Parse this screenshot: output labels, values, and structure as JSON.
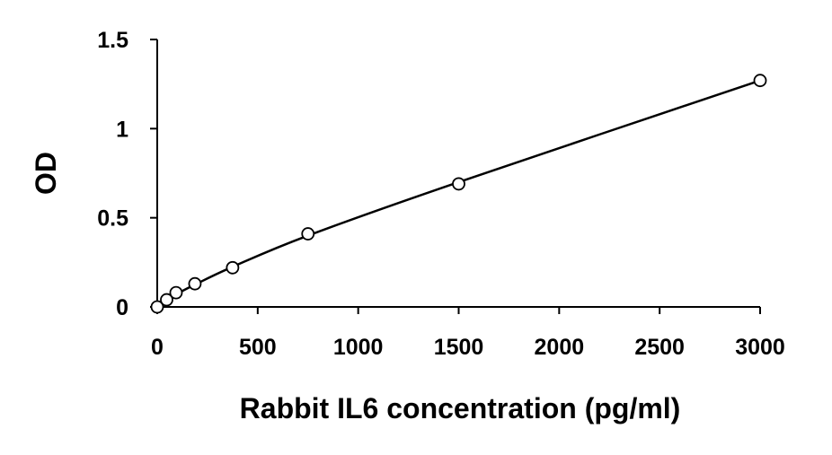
{
  "chart_data": {
    "type": "scatter",
    "title": "",
    "xlabel": "Rabbit IL6 concentration (pg/ml)",
    "ylabel": "OD",
    "xlim": [
      0,
      3000
    ],
    "ylim": [
      0,
      1.5
    ],
    "x_ticks": [
      0,
      500,
      1000,
      1500,
      2000,
      2500,
      3000
    ],
    "y_ticks": [
      0,
      0.5,
      1,
      1.5
    ],
    "x_tick_labels": [
      "0",
      "500",
      "1000",
      "1500",
      "2000",
      "2500",
      "3000"
    ],
    "y_tick_labels": [
      "0",
      "0.5",
      "1",
      "1.5"
    ],
    "grid": false,
    "legend": "none",
    "series": [
      {
        "type": "scatter",
        "marker": "open-circle",
        "x": [
          0,
          46.9,
          93.75,
          187.5,
          375,
          750,
          1500,
          3000
        ],
        "y": [
          0.0,
          0.04,
          0.08,
          0.13,
          0.22,
          0.41,
          0.69,
          1.27
        ]
      },
      {
        "type": "line",
        "smooth": true,
        "x": [
          0,
          46.9,
          93.75,
          187.5,
          375,
          750,
          1500,
          3000
        ],
        "y": [
          0.0,
          0.035,
          0.07,
          0.125,
          0.225,
          0.4,
          0.7,
          1.27
        ]
      }
    ],
    "colors": {
      "axis": "#000000",
      "line": "#000000",
      "marker_stroke": "#000000",
      "marker_fill": "#ffffff"
    }
  }
}
